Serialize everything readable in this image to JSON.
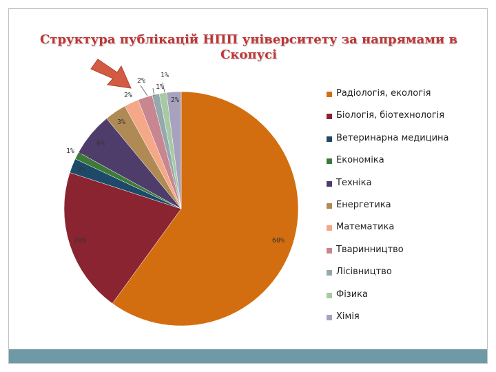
{
  "slide": {
    "title": "Структура публікацій НПП університету за напрямами в Скопусі"
  },
  "chart_data": {
    "type": "pie",
    "title": "Структура публікацій НПП університету за напрямами в Скопусі",
    "series": [
      {
        "name": "Радіологія, екологія",
        "value": 60,
        "label": "60%",
        "color": "#d36e10"
      },
      {
        "name": "Біологія, біотехнологія",
        "value": 20,
        "label": "20%",
        "color": "#8a2430"
      },
      {
        "name": "Ветеринарна медицина",
        "value": 2,
        "label": "2%",
        "color": "#1e4a6a"
      },
      {
        "name": "Економіка",
        "value": 1,
        "label": "1%",
        "color": "#3d7a3a"
      },
      {
        "name": "Техніка",
        "value": 6,
        "label": "6%",
        "color": "#4e3c6b"
      },
      {
        "name": "Енергетика",
        "value": 3,
        "label": "3%",
        "color": "#b08a55"
      },
      {
        "name": "Математика",
        "value": 2,
        "label": "2%",
        "color": "#f4a888"
      },
      {
        "name": "Тваринництво",
        "value": 2,
        "label": "2%",
        "color": "#c88690"
      },
      {
        "name": "Лісівництво",
        "value": 1,
        "label": "1%",
        "color": "#95a8ae"
      },
      {
        "name": "Фізика",
        "value": 1,
        "label": "1%",
        "color": "#a7c9a3"
      },
      {
        "name": "Хімія",
        "value": 2,
        "label": "2%",
        "color": "#a8a2be"
      }
    ],
    "legend_position": "right"
  },
  "annotation": {
    "arrow": "arrow-icon",
    "color": "#d35a43"
  }
}
